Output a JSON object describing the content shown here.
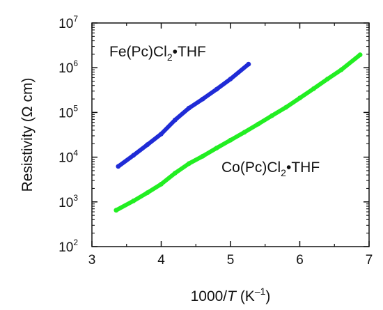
{
  "chart_data": {
    "type": "scatter",
    "xlabel": {
      "prefix": "1000/",
      "italic": "T",
      "unit_open": " (K",
      "unit_sup": "–1",
      "unit_close": ")"
    },
    "ylabel": "Resistivity (Ω cm)",
    "xlim": [
      3,
      7
    ],
    "ylim": [
      100,
      10000000
    ],
    "yscale": "log",
    "grid": false,
    "x_ticks": [
      3,
      4,
      5,
      6,
      7
    ],
    "y_ticks": [
      {
        "value": 100,
        "base": "10",
        "exp": "2"
      },
      {
        "value": 1000,
        "base": "10",
        "exp": "3"
      },
      {
        "value": 10000,
        "base": "10",
        "exp": "4"
      },
      {
        "value": 100000,
        "base": "10",
        "exp": "5"
      },
      {
        "value": 1000000,
        "base": "10",
        "exp": "6"
      },
      {
        "value": 10000000,
        "base": "10",
        "exp": "7"
      }
    ],
    "series": [
      {
        "name": "Fe(Pc)Cl2•THF",
        "label": {
          "main": "Fe(Pc)Cl",
          "sub": "2",
          "rest": "•THF"
        },
        "color": "#1f2bd6",
        "x": [
          3.38,
          3.6,
          3.8,
          4.0,
          4.2,
          4.4,
          4.6,
          4.8,
          5.0,
          5.26
        ],
        "y": [
          6200,
          11000,
          19000,
          33000,
          68000,
          125000,
          200000,
          330000,
          560000,
          1200000
        ]
      },
      {
        "name": "Co(Pc)Cl2•THF",
        "label": {
          "main": "Co(Pc)Cl",
          "sub": "2",
          "rest": "•THF"
        },
        "color": "#22ee22",
        "x": [
          3.35,
          3.6,
          3.8,
          4.0,
          4.2,
          4.4,
          4.6,
          4.8,
          5.0,
          5.2,
          5.4,
          5.6,
          5.8,
          6.0,
          6.2,
          6.4,
          6.6,
          6.87
        ],
        "y": [
          650,
          1050,
          1600,
          2500,
          4400,
          7200,
          10500,
          16000,
          24000,
          36000,
          55000,
          85000,
          130000,
          210000,
          340000,
          560000,
          900000,
          1950000
        ]
      }
    ]
  }
}
